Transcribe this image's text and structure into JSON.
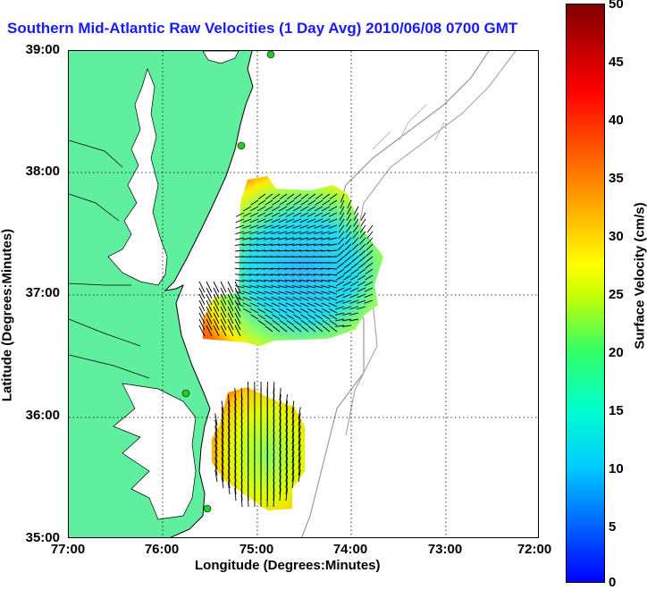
{
  "title": "Southern Mid-Atlantic Raw Velocities (1 Day Avg) 2010/06/08 0700 GMT",
  "xaxis": {
    "label": "Longitude (Degrees:Minutes)",
    "ticks": [
      "77:00",
      "76:00",
      "75:00",
      "74:00",
      "73:00",
      "72:00"
    ]
  },
  "yaxis": {
    "label": "Latitude (Degrees:Minutes)",
    "ticks": [
      "39:00",
      "38:00",
      "37:00",
      "36:00",
      "35:00"
    ]
  },
  "colorbar": {
    "label": "Surface Velocity (cm/s)",
    "ticks": [
      "50",
      "45",
      "40",
      "35",
      "30",
      "25",
      "20",
      "15",
      "10",
      "5",
      "0"
    ],
    "min": 0,
    "max": 50
  },
  "colors": {
    "land": "#5fef9e",
    "title": "#1a1aff",
    "station": "#22cc22"
  }
}
